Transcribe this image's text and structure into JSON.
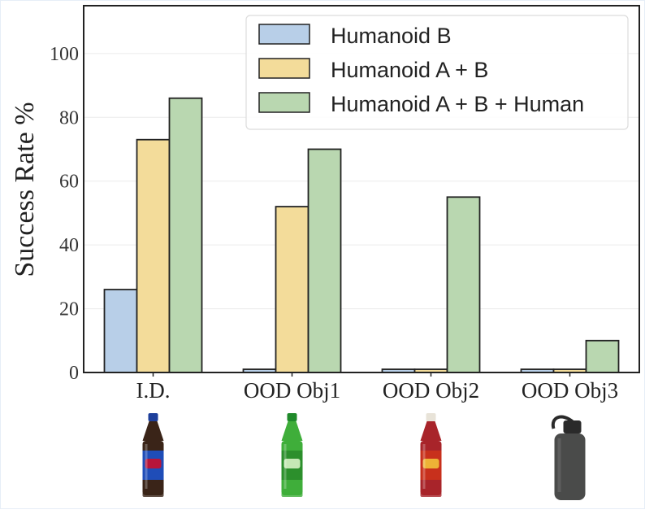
{
  "chart_data": {
    "type": "bar",
    "title": "",
    "xlabel": "",
    "ylabel": "Success Rate %",
    "ylim": [
      0,
      115
    ],
    "yticks": [
      "0",
      "20",
      "40",
      "60",
      "80",
      "100"
    ],
    "categories": [
      "I.D.",
      "OOD Obj1",
      "OOD Obj2",
      "OOD Obj3"
    ],
    "series": [
      {
        "name": "Humanoid B",
        "values": [
          26,
          1,
          1,
          1
        ],
        "color": "#b8cfe8"
      },
      {
        "name": "Humanoid A + B",
        "values": [
          73,
          52,
          1,
          1
        ],
        "color": "#f3dc9a"
      },
      {
        "name": "Humanoid A + B + Human",
        "values": [
          86,
          70,
          55,
          10
        ],
        "color": "#b9d7b0"
      }
    ],
    "grid": true,
    "legend_position": "top-right",
    "object_images": [
      {
        "name": "pepsi-bottle-icon",
        "cap": "#1d3f9b",
        "body": "#3a2418",
        "label": "#1f4db8",
        "accent": "#c8102e"
      },
      {
        "name": "green-soda-bottle-icon",
        "cap": "#1f8a2a",
        "body": "#3fae3a",
        "label": "#2c8f2c",
        "accent": "#d6f2c4"
      },
      {
        "name": "red-soda-bottle-icon",
        "cap": "#e8e3d8",
        "body": "#a8242a",
        "label": "#c8301c",
        "accent": "#f1c23a"
      },
      {
        "name": "water-bottle-icon",
        "cap": "#2a2a2a",
        "body": "#4a4b4a",
        "label": "#4a4b4a",
        "accent": "#6a6b6a"
      }
    ]
  }
}
